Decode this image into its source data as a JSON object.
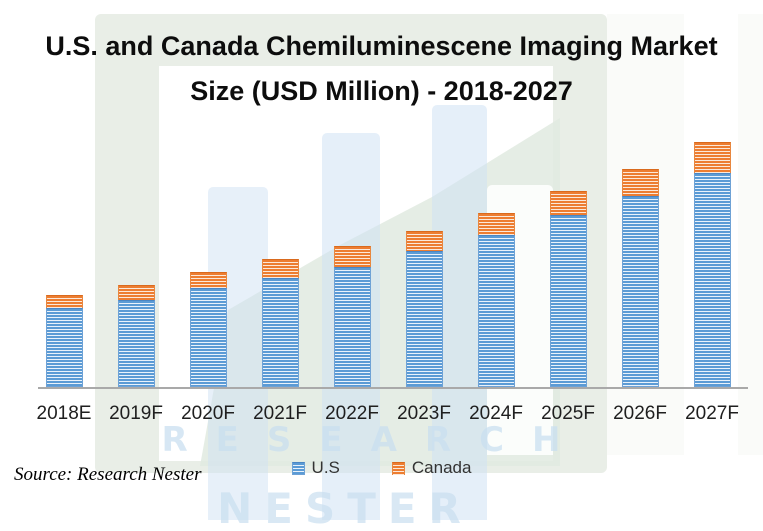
{
  "title": {
    "line1": "U.S. and Canada Chemiluminescene Imaging Market",
    "line2": "Size (USD Million) - 2018-2027"
  },
  "source_note": "Source: Research Nester",
  "watermark": {
    "line1": "RESEARCH",
    "line2": "NESTER"
  },
  "colors": {
    "us_series": "#5b9bd5",
    "canada_series": "#ed7d31",
    "axis_line": "#a9a9a9",
    "watermark_blue": "#c9dff0",
    "frame_green": "#e9eee7"
  },
  "chart_data": {
    "type": "bar",
    "stacked": true,
    "title": "U.S. and Canada Chemiluminescene Imaging Market Size (USD Million) - 2018-2027",
    "xlabel": "",
    "ylabel": "",
    "value_axis_visible": false,
    "gridlines": false,
    "legend_position": "bottom",
    "categories": [
      "2018E",
      "2019F",
      "2020F",
      "2021F",
      "2022F",
      "2023F",
      "2024F",
      "2025F",
      "2026F",
      "2027F"
    ],
    "series": [
      {
        "name": "U.S",
        "color": "#5b9bd5",
        "values": [
          77,
          85,
          97,
          107,
          118,
          134,
          150,
          170,
          189,
          212
        ]
      },
      {
        "name": "Canada",
        "color": "#ed7d31",
        "values": [
          12,
          14,
          15,
          18,
          20,
          19,
          21,
          23,
          26,
          30
        ]
      }
    ],
    "note": "No value axis is shown in the figure; series values are relative stacked-bar heights (pixels) estimated from the image."
  }
}
